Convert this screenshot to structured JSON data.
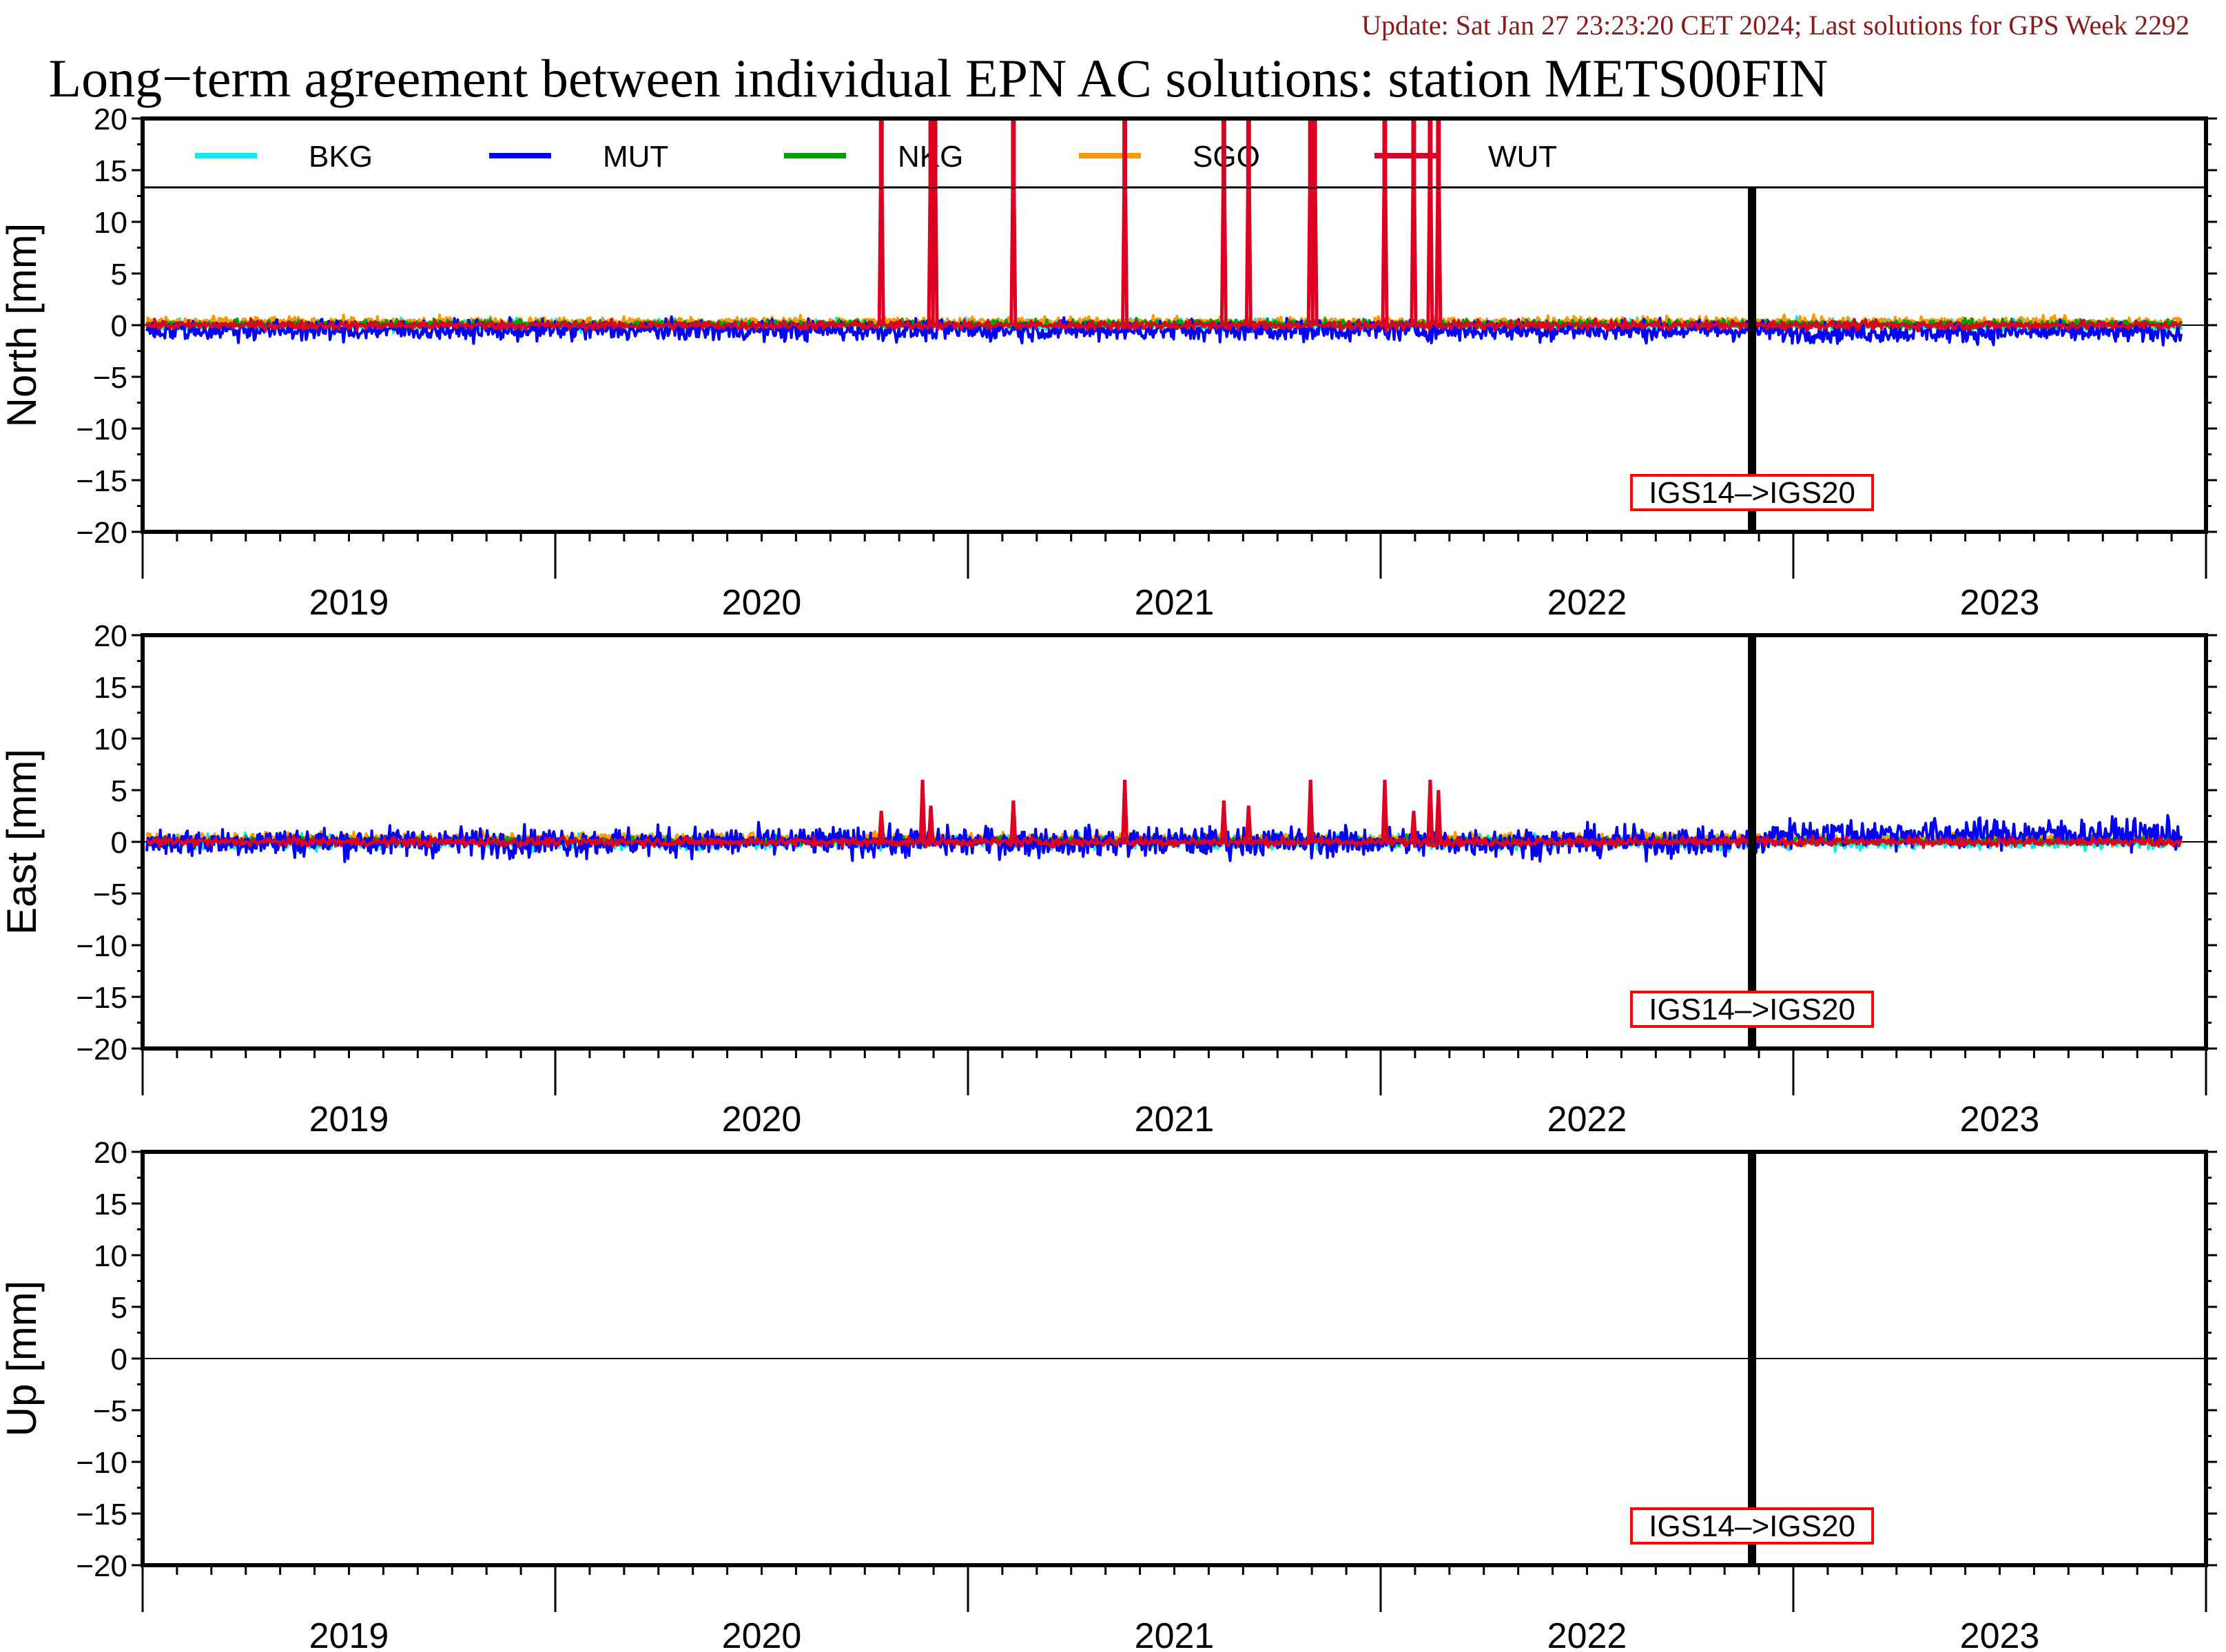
{
  "header": {
    "update_text": "Update: Sat Jan 27 23:23:20 CET 2024; Last solutions for GPS Week 2292",
    "title": "Long−term agreement between individual EPN AC solutions: station METS00FIN"
  },
  "colors": {
    "BKG": "#00f0f0",
    "MUT": "#0000ff",
    "NKG": "#00a000",
    "SGO": "#ff9900",
    "WUT": "#dd0022",
    "update_text": "#8b1a1a",
    "annotation_border": "#ff0000"
  },
  "legend": [
    "BKG",
    "MUT",
    "NKG",
    "SGO",
    "WUT"
  ],
  "chart_data": [
    {
      "type": "line",
      "panel": "north",
      "ylabel": "North [mm]",
      "ylim": [
        -20,
        20
      ],
      "yticks": [
        "20",
        "15",
        "10",
        "5",
        "0",
        "−5",
        "−10",
        "−15",
        "−20"
      ],
      "xlim": [
        2018.5,
        2023.5
      ],
      "year_labels": [
        "2019",
        "2020",
        "2021",
        "2022",
        "2023"
      ],
      "grid": false,
      "legend_position": "top",
      "reference_frame_change": {
        "x": 2022.4,
        "label": "IGS14–>IGS20"
      },
      "series": [
        {
          "name": "BKG",
          "noise_mm": 0.4,
          "mean_mm": 0.0
        },
        {
          "name": "MUT",
          "noise_mm": 0.7,
          "mean_mm": -0.5
        },
        {
          "name": "NKG",
          "noise_mm": 0.3,
          "mean_mm": 0.1
        },
        {
          "name": "SGO",
          "noise_mm": 0.35,
          "mean_mm": 0.3
        },
        {
          "name": "WUT",
          "noise_mm": 0.3,
          "mean_mm": 0.0,
          "spikes": [
            {
              "x": 2020.29,
              "y": 20
            },
            {
              "x": 2020.41,
              "y": 20
            },
            {
              "x": 2020.42,
              "y": 20
            },
            {
              "x": 2020.61,
              "y": 20
            },
            {
              "x": 2020.88,
              "y": 20
            },
            {
              "x": 2021.12,
              "y": 20
            },
            {
              "x": 2021.18,
              "y": 20
            },
            {
              "x": 2021.33,
              "y": 20
            },
            {
              "x": 2021.34,
              "y": 20
            },
            {
              "x": 2021.51,
              "y": 20
            },
            {
              "x": 2021.58,
              "y": 20
            },
            {
              "x": 2021.62,
              "y": 20
            },
            {
              "x": 2021.64,
              "y": 20
            }
          ]
        }
      ]
    },
    {
      "type": "line",
      "panel": "east",
      "ylabel": "East [mm]",
      "ylim": [
        -20,
        20
      ],
      "yticks": [
        "20",
        "15",
        "10",
        "5",
        "0",
        "−5",
        "−10",
        "−15",
        "−20"
      ],
      "xlim": [
        2018.5,
        2023.5
      ],
      "year_labels": [
        "2019",
        "2020",
        "2021",
        "2022",
        "2023"
      ],
      "grid": false,
      "reference_frame_change": {
        "x": 2022.4,
        "label": "IGS14–>IGS20"
      },
      "series": [
        {
          "name": "BKG",
          "noise_mm": 0.5,
          "mean_mm": 0.0
        },
        {
          "name": "MUT",
          "noise_mm": 1.0,
          "mean_mm": 0.0
        },
        {
          "name": "NKG",
          "noise_mm": 0.3,
          "mean_mm": 0.1
        },
        {
          "name": "SGO",
          "noise_mm": 0.4,
          "mean_mm": 0.3
        },
        {
          "name": "WUT",
          "noise_mm": 0.3,
          "mean_mm": 0.0,
          "spikes": [
            {
              "x": 2020.29,
              "y": 3.0
            },
            {
              "x": 2020.39,
              "y": 6.0
            },
            {
              "x": 2020.41,
              "y": 3.5
            },
            {
              "x": 2020.61,
              "y": 4.0
            },
            {
              "x": 2020.88,
              "y": 6.0
            },
            {
              "x": 2021.12,
              "y": 4.0
            },
            {
              "x": 2021.18,
              "y": 3.5
            },
            {
              "x": 2021.33,
              "y": 6.0
            },
            {
              "x": 2021.51,
              "y": 6.0
            },
            {
              "x": 2021.58,
              "y": 3.0
            },
            {
              "x": 2021.62,
              "y": 6.0
            },
            {
              "x": 2021.64,
              "y": 5.0
            }
          ]
        }
      ]
    },
    {
      "type": "line",
      "panel": "up",
      "ylabel": "Up [mm]",
      "ylim": [
        -20,
        20
      ],
      "yticks": [
        "20",
        "15",
        "10",
        "5",
        "0",
        "−5",
        "−10",
        "−15",
        "−20"
      ],
      "xlim": [
        2018.5,
        2023.5
      ],
      "year_labels": [
        "2019",
        "2020",
        "2021",
        "2022",
        "2023"
      ],
      "grid": false,
      "reference_frame_change": {
        "x": 2022.4,
        "label": "IGS14–>IGS20"
      },
      "series": []
    }
  ]
}
